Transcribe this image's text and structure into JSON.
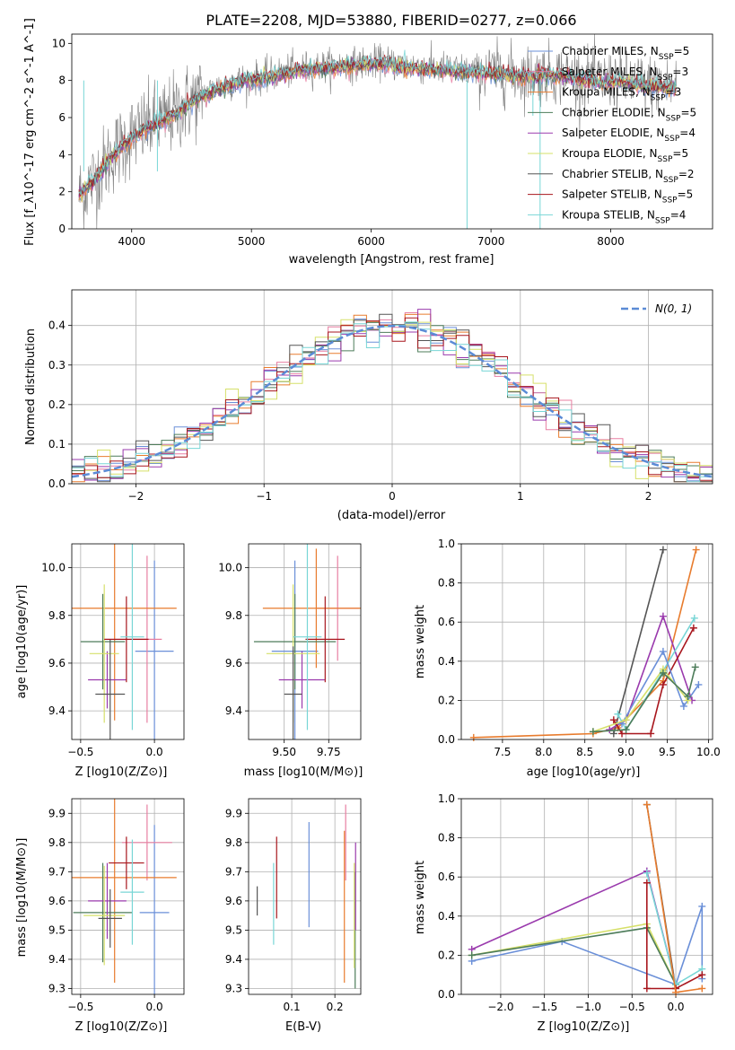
{
  "colors": {
    "Chabrier MILES": "#6a8fd8",
    "Salpeter MILES": "#e87fa2",
    "Kroupa MILES": "#e87c2e",
    "Chabrier ELODIE": "#4d7c5a",
    "Salpeter ELODIE": "#9a3aad",
    "Kroupa ELODIE": "#d6e06a",
    "Chabrier STELIB": "#555555",
    "Salpeter STELIB": "#a8161d",
    "Kroupa STELIB": "#78d6d6",
    "data": "#808080",
    "normal": "#5b8bd6"
  },
  "chart_data": [
    {
      "id": "spectrum",
      "type": "line",
      "title": "PLATE=2208, MJD=53880, FIBERID=0277, z=0.066",
      "xlabel": "wavelength [Angstrom, rest frame]",
      "ylabel": "Flux [f_λ10^-17 erg cm^-2 s^-1 A^-1]",
      "xlim": [
        3500,
        8850
      ],
      "ylim": [
        0,
        10.5
      ],
      "xticks": [
        "4000",
        "5000",
        "6000",
        "7000",
        "8000"
      ],
      "yticks": [
        "0",
        "2",
        "4",
        "6",
        "8",
        "10"
      ],
      "x": [
        3560,
        3700,
        3850,
        4000,
        4150,
        4300,
        4500,
        4700,
        4900,
        5100,
        5300,
        5500,
        5700,
        5900,
        6100,
        6300,
        6500,
        6700,
        6900,
        7100,
        7300,
        7500,
        7700,
        7900,
        8100,
        8300,
        8500
      ],
      "data_flux": [
        1.8,
        2.8,
        4.1,
        5.0,
        5.6,
        6.0,
        6.9,
        7.6,
        8.0,
        8.2,
        8.5,
        8.7,
        8.8,
        8.9,
        9.0,
        8.8,
        8.7,
        8.6,
        8.5,
        8.4,
        8.3,
        8.4,
        8.2,
        8.0,
        8.0,
        7.8,
        7.7
      ],
      "model_flux": [
        1.8,
        2.7,
        4.0,
        4.9,
        5.5,
        5.9,
        6.8,
        7.5,
        7.9,
        8.1,
        8.4,
        8.6,
        8.7,
        8.8,
        8.9,
        8.7,
        8.6,
        8.5,
        8.4,
        8.3,
        8.2,
        8.3,
        8.1,
        7.9,
        7.9,
        7.7,
        7.6
      ],
      "legend": [
        {
          "name": "Chabrier MILES",
          "nssp": "5"
        },
        {
          "name": "Salpeter MILES",
          "nssp": "3"
        },
        {
          "name": "Kroupa MILES",
          "nssp": "3"
        },
        {
          "name": "Chabrier ELODIE",
          "nssp": "5"
        },
        {
          "name": "Salpeter ELODIE",
          "nssp": "4"
        },
        {
          "name": "Kroupa ELODIE",
          "nssp": "5"
        },
        {
          "name": "Chabrier STELIB",
          "nssp": "2"
        },
        {
          "name": "Salpeter STELIB",
          "nssp": "5"
        },
        {
          "name": "Kroupa STELIB",
          "nssp": "4"
        }
      ]
    },
    {
      "id": "residuals",
      "type": "histogram",
      "xlabel": "(data-model)/error",
      "ylabel": "Normed distribution",
      "xlim": [
        -2.5,
        2.5
      ],
      "ylim": [
        0,
        0.49
      ],
      "xticks": [
        "−2",
        "−1",
        "0",
        "1",
        "2"
      ],
      "yticks": [
        "0.0",
        "0.1",
        "0.2",
        "0.3",
        "0.4"
      ],
      "bin_width": 0.1,
      "bin_start": -2.5,
      "reference_label": "N(0, 1)",
      "grid": true,
      "legend_position": "top-right"
    },
    {
      "id": "age_vs_Z",
      "type": "errorbar",
      "xlabel": "Z [log10(Z/Z⊙)]",
      "ylabel": "age [log10(age/yr)]",
      "xlim": [
        -0.56,
        0.2
      ],
      "ylim": [
        9.28,
        10.1
      ],
      "xticks": [
        "−0.5",
        "0.0"
      ],
      "yticks": [
        "9.4",
        "9.6",
        "9.8",
        "10.0"
      ],
      "points": [
        {
          "model": "Chabrier MILES",
          "x": 0.0,
          "xerr": 0.13,
          "y": 9.65,
          "yerr": 0.38
        },
        {
          "model": "Salpeter MILES",
          "x": -0.05,
          "xerr": 0.1,
          "y": 9.7,
          "yerr": 0.35
        },
        {
          "model": "Kroupa MILES",
          "x": -0.27,
          "xerr": 0.42,
          "y": 9.83,
          "yerr": 0.47
        },
        {
          "model": "Chabrier ELODIE",
          "x": -0.35,
          "xerr": 0.15,
          "y": 9.69,
          "yerr": 0.2
        },
        {
          "model": "Salpeter ELODIE",
          "x": -0.32,
          "xerr": 0.13,
          "y": 9.53,
          "yerr": 0.12
        },
        {
          "model": "Kroupa ELODIE",
          "x": -0.34,
          "xerr": 0.1,
          "y": 9.64,
          "yerr": 0.29
        },
        {
          "model": "Chabrier STELIB",
          "x": -0.3,
          "xerr": 0.1,
          "y": 9.47,
          "yerr": 0.23
        },
        {
          "model": "Salpeter STELIB",
          "x": -0.19,
          "xerr": 0.15,
          "y": 9.7,
          "yerr": 0.18
        },
        {
          "model": "Kroupa STELIB",
          "x": -0.15,
          "xerr": 0.08,
          "y": 9.71,
          "yerr": 0.39
        }
      ]
    },
    {
      "id": "age_vs_mass",
      "type": "errorbar",
      "xlabel": "mass [log10(M/M⊙)]",
      "ylabel": "",
      "xlim": [
        9.3,
        9.93
      ],
      "ylim": [
        9.28,
        10.1
      ],
      "xticks": [
        "9.50",
        "9.75"
      ],
      "yticks": [
        "9.4",
        "9.6",
        "9.8",
        "10.0"
      ],
      "points": [
        {
          "model": "Chabrier MILES",
          "x": 9.56,
          "xerr": 0.13,
          "y": 9.65,
          "yerr": 0.38
        },
        {
          "model": "Salpeter MILES",
          "x": 9.8,
          "xerr": 0.12,
          "y": 9.83,
          "yerr": 0.22
        },
        {
          "model": "Kroupa MILES",
          "x": 9.68,
          "xerr": 0.3,
          "y": 9.83,
          "yerr": 0.25
        },
        {
          "model": "Chabrier ELODIE",
          "x": 9.56,
          "xerr": 0.23,
          "y": 9.69,
          "yerr": 0.2
        },
        {
          "model": "Salpeter ELODIE",
          "x": 9.6,
          "xerr": 0.13,
          "y": 9.53,
          "yerr": 0.12
        },
        {
          "model": "Kroupa ELODIE",
          "x": 9.55,
          "xerr": 0.15,
          "y": 9.64,
          "yerr": 0.29
        },
        {
          "model": "Chabrier STELIB",
          "x": 9.55,
          "xerr": 0.05,
          "y": 9.47,
          "yerr": 0.2
        },
        {
          "model": "Salpeter STELIB",
          "x": 9.73,
          "xerr": 0.11,
          "y": 9.7,
          "yerr": 0.18
        },
        {
          "model": "Kroupa STELIB",
          "x": 9.63,
          "xerr": 0.08,
          "y": 9.71,
          "yerr": 0.39
        }
      ]
    },
    {
      "id": "massweight_vs_age",
      "type": "line",
      "xlabel": "age [log10(age/yr)]",
      "ylabel": "mass weight",
      "xlim": [
        7.0,
        10.05
      ],
      "ylim": [
        0,
        1.0
      ],
      "xticks": [
        "7.5",
        "8.0",
        "8.5",
        "9.0",
        "9.5",
        "10.0"
      ],
      "yticks": [
        "0.0",
        "0.2",
        "0.4",
        "0.6",
        "0.8",
        "1.0"
      ],
      "series": [
        {
          "model": "Kroupa MILES",
          "x": [
            7.15,
            8.6,
            8.9,
            9.45,
            9.85
          ],
          "y": [
            0.01,
            0.03,
            0.06,
            0.3,
            0.97
          ]
        },
        {
          "model": "Chabrier STELIB",
          "x": [
            8.85,
            9.45
          ],
          "y": [
            0.03,
            0.97
          ]
        },
        {
          "model": "Salpeter ELODIE",
          "x": [
            8.8,
            9.0,
            9.45,
            9.8
          ],
          "y": [
            0.05,
            0.1,
            0.63,
            0.2
          ]
        },
        {
          "model": "Kroupa STELIB",
          "x": [
            8.9,
            9.0,
            9.45,
            9.83
          ],
          "y": [
            0.13,
            0.05,
            0.35,
            0.62
          ]
        },
        {
          "model": "Salpeter STELIB",
          "x": [
            8.85,
            8.95,
            9.3,
            9.45,
            9.82
          ],
          "y": [
            0.1,
            0.03,
            0.03,
            0.28,
            0.57
          ]
        },
        {
          "model": "Chabrier MILES",
          "x": [
            8.95,
            9.45,
            9.7,
            9.88
          ],
          "y": [
            0.08,
            0.45,
            0.17,
            0.28
          ]
        },
        {
          "model": "Kroupa ELODIE",
          "x": [
            8.6,
            9.0,
            9.45,
            9.75
          ],
          "y": [
            0.04,
            0.1,
            0.36,
            0.2
          ]
        },
        {
          "model": "Chabrier ELODIE",
          "x": [
            8.6,
            9.0,
            9.45,
            9.75,
            9.84
          ],
          "y": [
            0.04,
            0.05,
            0.34,
            0.22,
            0.37
          ]
        }
      ]
    },
    {
      "id": "mass_vs_Z",
      "type": "errorbar",
      "xlabel": "Z [log10(Z/Z⊙)]",
      "ylabel": "mass [log10(M/M⊙)]",
      "xlim": [
        -0.56,
        0.2
      ],
      "ylim": [
        9.28,
        9.95
      ],
      "xticks": [
        "−0.5",
        "0.0"
      ],
      "yticks": [
        "9.3",
        "9.4",
        "9.5",
        "9.6",
        "9.7",
        "9.8",
        "9.9"
      ],
      "points": [
        {
          "model": "Chabrier MILES",
          "x": 0.0,
          "xerr": 0.1,
          "y": 9.56,
          "yerr": 0.3
        },
        {
          "model": "Salpeter MILES",
          "x": -0.05,
          "xerr": 0.17,
          "y": 9.8,
          "yerr": 0.13
        },
        {
          "model": "Kroupa MILES",
          "x": -0.27,
          "xerr": 0.42,
          "y": 9.68,
          "yerr": 0.36
        },
        {
          "model": "Chabrier ELODIE",
          "x": -0.35,
          "xerr": 0.2,
          "y": 9.56,
          "yerr": 0.17
        },
        {
          "model": "Salpeter ELODIE",
          "x": -0.32,
          "xerr": 0.13,
          "y": 9.6,
          "yerr": 0.13
        },
        {
          "model": "Kroupa ELODIE",
          "x": -0.34,
          "xerr": 0.14,
          "y": 9.55,
          "yerr": 0.17
        },
        {
          "model": "Chabrier STELIB",
          "x": -0.3,
          "xerr": 0.08,
          "y": 9.54,
          "yerr": 0.1
        },
        {
          "model": "Salpeter STELIB",
          "x": -0.19,
          "xerr": 0.12,
          "y": 9.73,
          "yerr": 0.09
        },
        {
          "model": "Kroupa STELIB",
          "x": -0.15,
          "xerr": 0.08,
          "y": 9.63,
          "yerr": 0.18
        }
      ]
    },
    {
      "id": "mass_vs_ebv",
      "type": "errorbar",
      "xlabel": "E(B-V)",
      "ylabel": "",
      "xlim": [
        0.0,
        0.26
      ],
      "ylim": [
        9.28,
        9.95
      ],
      "xticks": [
        "0.1",
        "0.2"
      ],
      "yticks": [
        "9.3",
        "9.4",
        "9.5",
        "9.6",
        "9.7",
        "9.8",
        "9.9"
      ],
      "points": [
        {
          "model": "Chabrier MILES",
          "x": 0.14,
          "xerr": 0.0,
          "y": 9.69,
          "yerr": 0.18
        },
        {
          "model": "Salpeter MILES",
          "x": 0.225,
          "xerr": 0.0,
          "y": 9.8,
          "yerr": 0.13
        },
        {
          "model": "Kroupa MILES",
          "x": 0.222,
          "xerr": 0.0,
          "y": 9.58,
          "yerr": 0.26
        },
        {
          "model": "Chabrier ELODIE",
          "x": 0.247,
          "xerr": 0.0,
          "y": 9.5,
          "yerr": 0.2
        },
        {
          "model": "Salpeter ELODIE",
          "x": 0.248,
          "xerr": 0.0,
          "y": 9.65,
          "yerr": 0.15
        },
        {
          "model": "Kroupa ELODIE",
          "x": 0.245,
          "xerr": 0.0,
          "y": 9.55,
          "yerr": 0.18
        },
        {
          "model": "Chabrier STELIB",
          "x": 0.02,
          "xerr": 0.0,
          "y": 9.6,
          "yerr": 0.05
        },
        {
          "model": "Salpeter STELIB",
          "x": 0.065,
          "xerr": 0.0,
          "y": 9.68,
          "yerr": 0.14
        },
        {
          "model": "Kroupa STELIB",
          "x": 0.058,
          "xerr": 0.0,
          "y": 9.59,
          "yerr": 0.14
        }
      ]
    },
    {
      "id": "massweight_vs_Z",
      "type": "line",
      "xlabel": "Z [log10(Z/Z⊙)]",
      "ylabel": "mass weight",
      "xlim": [
        -2.45,
        0.42
      ],
      "ylim": [
        0,
        1.0
      ],
      "xticks": [
        "−2.0",
        "−1.5",
        "−1.0",
        "−0.5",
        "0.0"
      ],
      "yticks": [
        "0.0",
        "0.2",
        "0.4",
        "0.6",
        "0.8",
        "1.0"
      ],
      "series": [
        {
          "model": "Chabrier STELIB",
          "x": [
            -0.33,
            0.0
          ],
          "y": [
            0.97,
            0.03
          ]
        },
        {
          "model": "Salpeter ELODIE",
          "x": [
            -2.33,
            -0.33,
            0.0
          ],
          "y": [
            0.23,
            0.63,
            0.05
          ]
        },
        {
          "model": "Chabrier MILES",
          "x": [
            -2.33,
            -1.3,
            0.0,
            0.3,
            0.3
          ],
          "y": [
            0.17,
            0.27,
            0.05,
            0.45,
            0.08
          ]
        },
        {
          "model": "Kroupa ELODIE",
          "x": [
            -2.33,
            -0.33,
            0.0
          ],
          "y": [
            0.2,
            0.36,
            0.05
          ]
        },
        {
          "model": "Chabrier ELODIE",
          "x": [
            -2.33,
            -0.33,
            0.0
          ],
          "y": [
            0.2,
            0.34,
            0.05
          ]
        },
        {
          "model": "Kroupa STELIB",
          "x": [
            -0.33,
            0.0,
            0.3
          ],
          "y": [
            0.62,
            0.05,
            0.13
          ]
        },
        {
          "model": "Salpeter STELIB",
          "x": [
            -0.33,
            -0.33,
            0.0,
            0.3
          ],
          "y": [
            0.57,
            0.03,
            0.03,
            0.1
          ]
        },
        {
          "model": "Kroupa MILES",
          "x": [
            -0.33,
            0.0,
            0.3
          ],
          "y": [
            0.97,
            0.01,
            0.03
          ]
        }
      ]
    }
  ]
}
